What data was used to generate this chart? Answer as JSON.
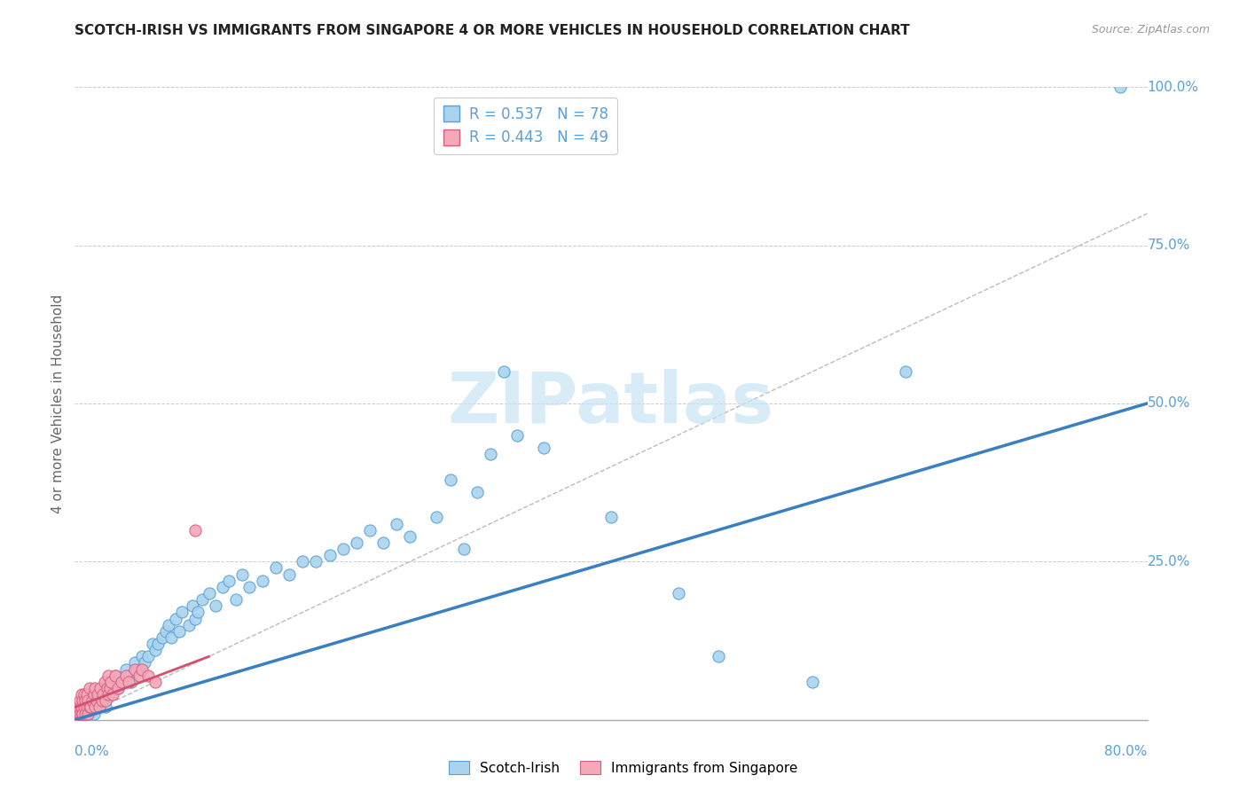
{
  "title": "SCOTCH-IRISH VS IMMIGRANTS FROM SINGAPORE 4 OR MORE VEHICLES IN HOUSEHOLD CORRELATION CHART",
  "source": "Source: ZipAtlas.com",
  "xlabel_min": "0.0%",
  "xlabel_max": "80.0%",
  "ylabel": "4 or more Vehicles in Household",
  "xlim": [
    0,
    0.8
  ],
  "ylim": [
    0,
    1.0
  ],
  "blue_R": 0.537,
  "blue_N": 78,
  "pink_R": 0.443,
  "pink_N": 49,
  "blue_color": "#aad4ee",
  "pink_color": "#f4a8b8",
  "blue_edge_color": "#5a9fd4",
  "pink_edge_color": "#d46080",
  "blue_line_color": "#3a7fc1",
  "pink_line_color": "#d45070",
  "diagonal_color": "#bbbbbb",
  "tick_color": "#5a9fd4",
  "watermark_color": "#c8e4f4",
  "watermark": "ZIPatlas",
  "legend_label_blue": "Scotch-Irish",
  "legend_label_pink": "Immigrants from Singapore",
  "blue_line_x0": 0.0,
  "blue_line_y0": 0.0,
  "blue_line_x1": 0.8,
  "blue_line_y1": 0.5,
  "pink_line_x0": 0.0,
  "pink_line_y0": 0.02,
  "pink_line_x1": 0.1,
  "pink_line_y1": 0.1,
  "blue_scatter_x": [
    0.005,
    0.007,
    0.008,
    0.01,
    0.01,
    0.012,
    0.013,
    0.014,
    0.015,
    0.015,
    0.016,
    0.018,
    0.02,
    0.021,
    0.022,
    0.023,
    0.025,
    0.027,
    0.028,
    0.03,
    0.032,
    0.035,
    0.038,
    0.04,
    0.042,
    0.045,
    0.048,
    0.05,
    0.052,
    0.055,
    0.058,
    0.06,
    0.062,
    0.065,
    0.068,
    0.07,
    0.072,
    0.075,
    0.078,
    0.08,
    0.085,
    0.088,
    0.09,
    0.092,
    0.095,
    0.1,
    0.105,
    0.11,
    0.115,
    0.12,
    0.125,
    0.13,
    0.14,
    0.15,
    0.16,
    0.17,
    0.18,
    0.19,
    0.2,
    0.21,
    0.22,
    0.23,
    0.24,
    0.25,
    0.27,
    0.28,
    0.29,
    0.3,
    0.31,
    0.32,
    0.33,
    0.35,
    0.4,
    0.45,
    0.48,
    0.55,
    0.62,
    0.78
  ],
  "blue_scatter_y": [
    0.01,
    0.01,
    0.02,
    0.01,
    0.03,
    0.02,
    0.03,
    0.01,
    0.04,
    0.02,
    0.03,
    0.02,
    0.05,
    0.03,
    0.04,
    0.02,
    0.06,
    0.04,
    0.05,
    0.07,
    0.05,
    0.06,
    0.08,
    0.07,
    0.06,
    0.09,
    0.08,
    0.1,
    0.09,
    0.1,
    0.12,
    0.11,
    0.12,
    0.13,
    0.14,
    0.15,
    0.13,
    0.16,
    0.14,
    0.17,
    0.15,
    0.18,
    0.16,
    0.17,
    0.19,
    0.2,
    0.18,
    0.21,
    0.22,
    0.19,
    0.23,
    0.21,
    0.22,
    0.24,
    0.23,
    0.25,
    0.25,
    0.26,
    0.27,
    0.28,
    0.3,
    0.28,
    0.31,
    0.29,
    0.32,
    0.38,
    0.27,
    0.36,
    0.42,
    0.55,
    0.45,
    0.43,
    0.32,
    0.2,
    0.1,
    0.06,
    0.55,
    1.0
  ],
  "pink_scatter_x": [
    0.002,
    0.003,
    0.004,
    0.004,
    0.005,
    0.005,
    0.005,
    0.006,
    0.006,
    0.007,
    0.007,
    0.008,
    0.008,
    0.009,
    0.009,
    0.01,
    0.01,
    0.011,
    0.011,
    0.012,
    0.013,
    0.014,
    0.015,
    0.015,
    0.016,
    0.017,
    0.018,
    0.019,
    0.02,
    0.021,
    0.022,
    0.023,
    0.024,
    0.025,
    0.025,
    0.026,
    0.027,
    0.028,
    0.03,
    0.032,
    0.035,
    0.038,
    0.04,
    0.045,
    0.048,
    0.05,
    0.055,
    0.06,
    0.09
  ],
  "pink_scatter_y": [
    0.01,
    0.02,
    0.01,
    0.03,
    0.01,
    0.02,
    0.04,
    0.01,
    0.03,
    0.02,
    0.04,
    0.01,
    0.03,
    0.02,
    0.04,
    0.01,
    0.03,
    0.02,
    0.05,
    0.02,
    0.03,
    0.04,
    0.02,
    0.05,
    0.03,
    0.04,
    0.02,
    0.05,
    0.03,
    0.04,
    0.06,
    0.03,
    0.05,
    0.04,
    0.07,
    0.05,
    0.06,
    0.04,
    0.07,
    0.05,
    0.06,
    0.07,
    0.06,
    0.08,
    0.07,
    0.08,
    0.07,
    0.06,
    0.3
  ]
}
